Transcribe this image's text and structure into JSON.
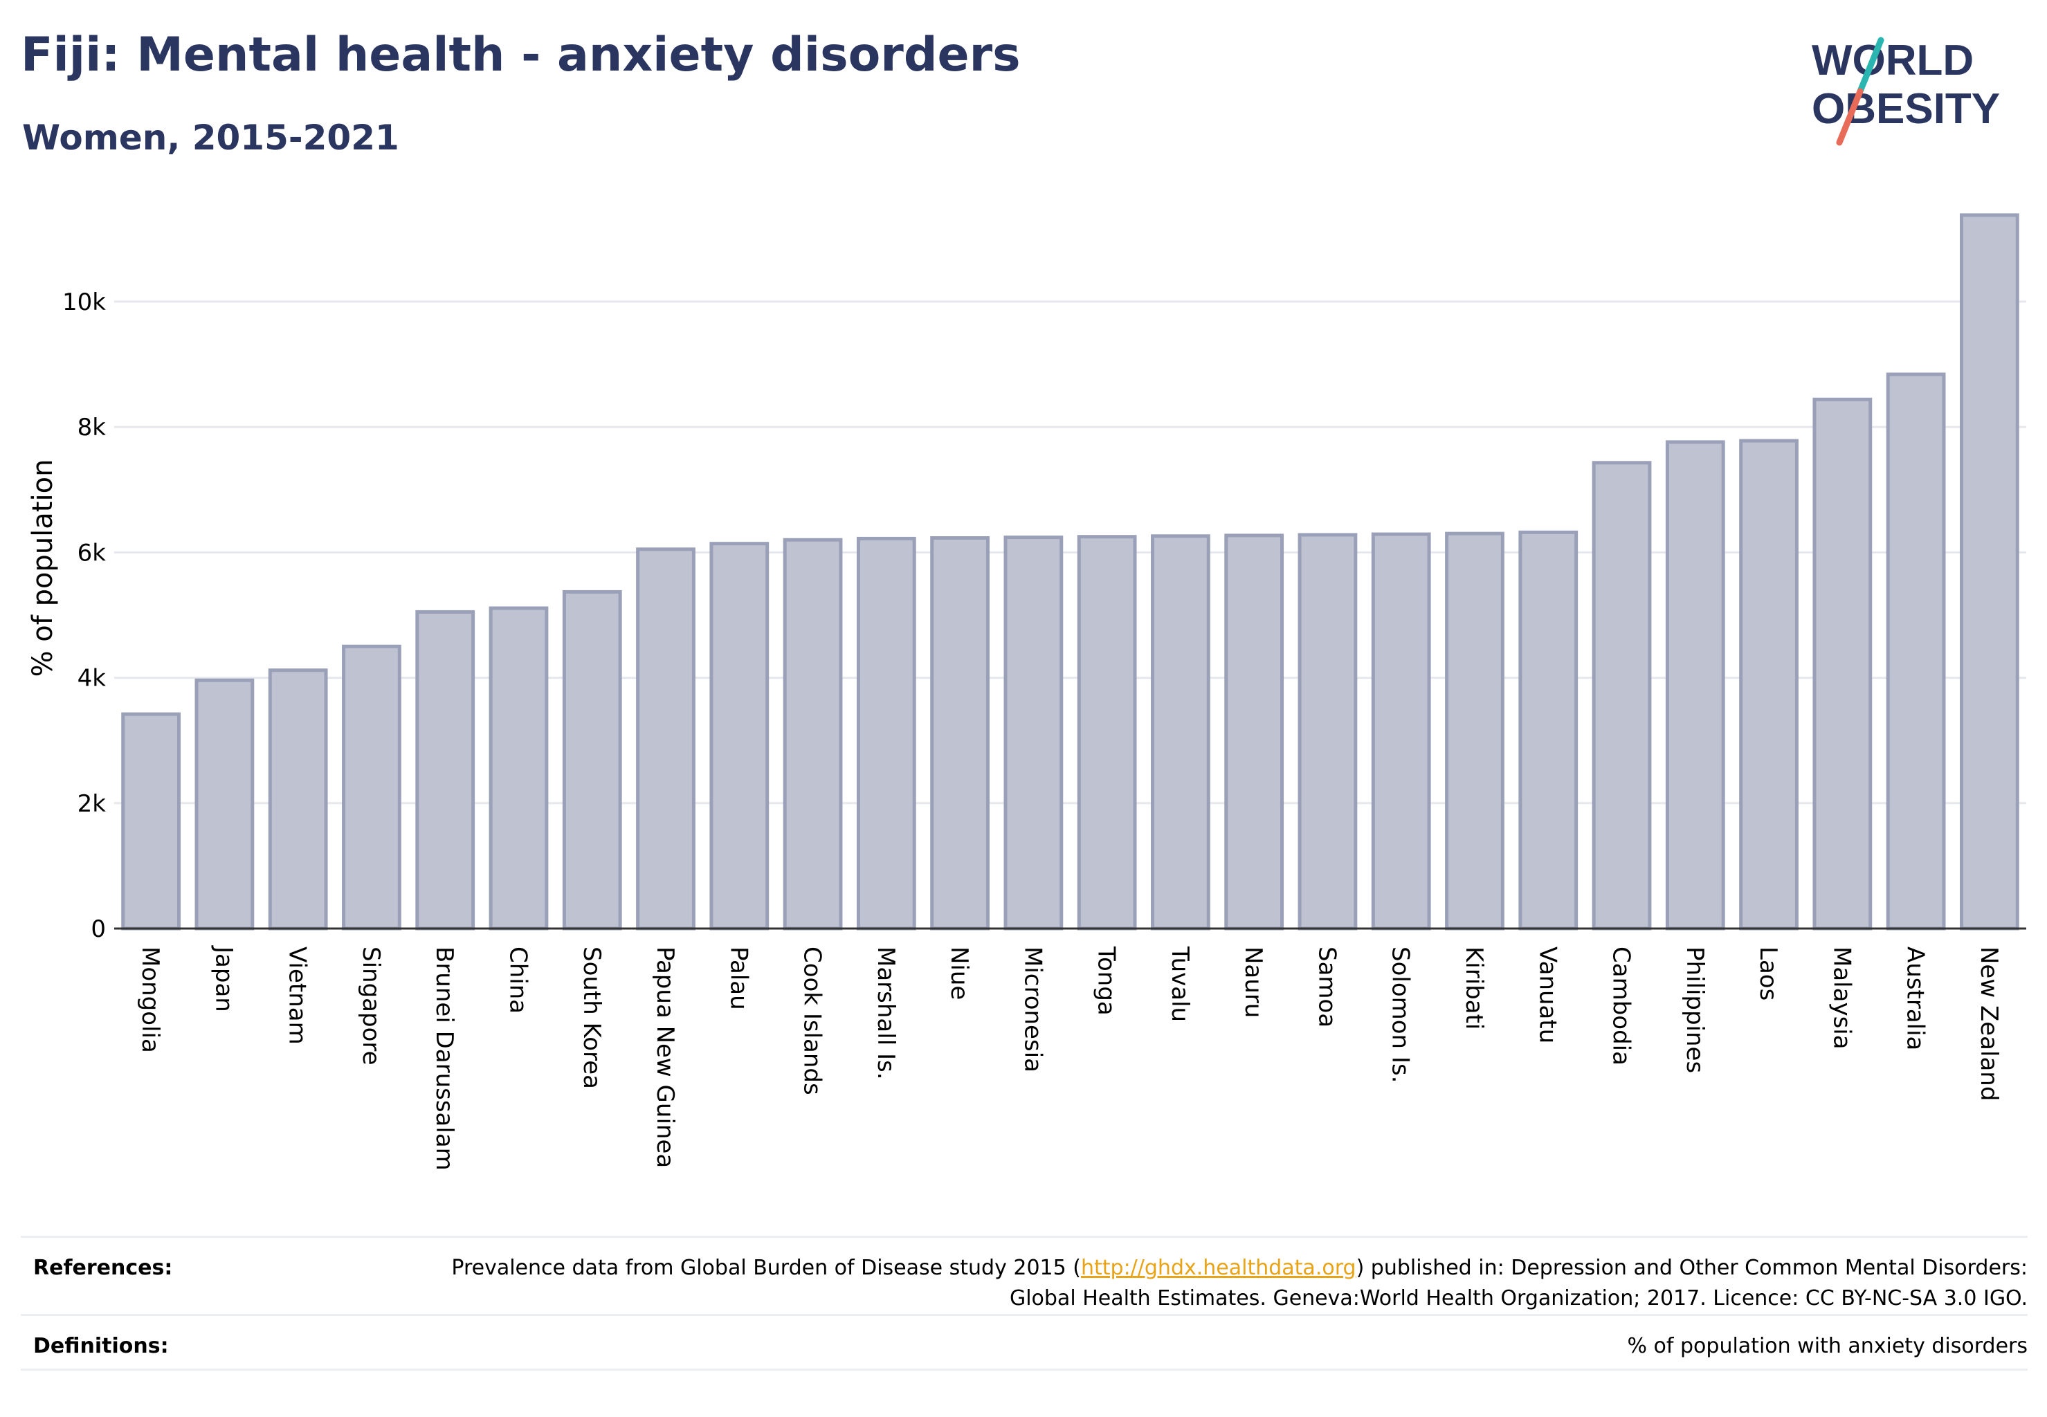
{
  "title": "Fiji: Mental health - anxiety disorders",
  "subtitle": "Women, 2015-2021",
  "logo": {
    "line1": "WORLD",
    "line2": "OBESITY",
    "colors": {
      "text": "#2a3560",
      "slash_top": "#2bb5b0",
      "slash_bottom": "#e86b5a"
    }
  },
  "chart_data": {
    "type": "bar",
    "ylabel": "% of population",
    "xlabel": "",
    "ylim": [
      0,
      11500
    ],
    "yticks": [
      0,
      2000,
      4000,
      6000,
      8000,
      10000
    ],
    "ytick_labels": [
      "0",
      "2k",
      "4k",
      "6k",
      "8k",
      "10k"
    ],
    "grid": true,
    "bar_color": "#bfc2d0",
    "bar_edge_color": "#9aa0b8",
    "categories": [
      "Mongolia",
      "Japan",
      "Vietnam",
      "Singapore",
      "Brunei Darussalam",
      "China",
      "South Korea",
      "Papua New Guinea",
      "Palau",
      "Cook Islands",
      "Marshall Is.",
      "Niue",
      "Micronesia",
      "Tonga",
      "Tuvalu",
      "Nauru",
      "Samoa",
      "Solomon Is.",
      "Kiribati",
      "Vanuatu",
      "Cambodia",
      "Philippines",
      "Laos",
      "Malaysia",
      "Australia",
      "New Zealand"
    ],
    "values": [
      3420,
      3960,
      4120,
      4500,
      5050,
      5110,
      5370,
      6050,
      6140,
      6200,
      6220,
      6230,
      6240,
      6250,
      6260,
      6270,
      6280,
      6290,
      6300,
      6320,
      7430,
      7760,
      7780,
      8440,
      8840,
      11380
    ]
  },
  "footer": {
    "references_label": "References:",
    "references_text_before": "Prevalence data from Global Burden of Disease study 2015 (",
    "references_link": "http://ghdx.healthdata.org",
    "references_text_after": ") published in: Depression and Other Common Mental Disorders: Global Health Estimates. Geneva:World Health Organization; 2017. Licence: CC BY-NC-SA 3.0 IGO.",
    "definitions_label": "Definitions:",
    "definitions_text": "% of population with anxiety disorders"
  }
}
